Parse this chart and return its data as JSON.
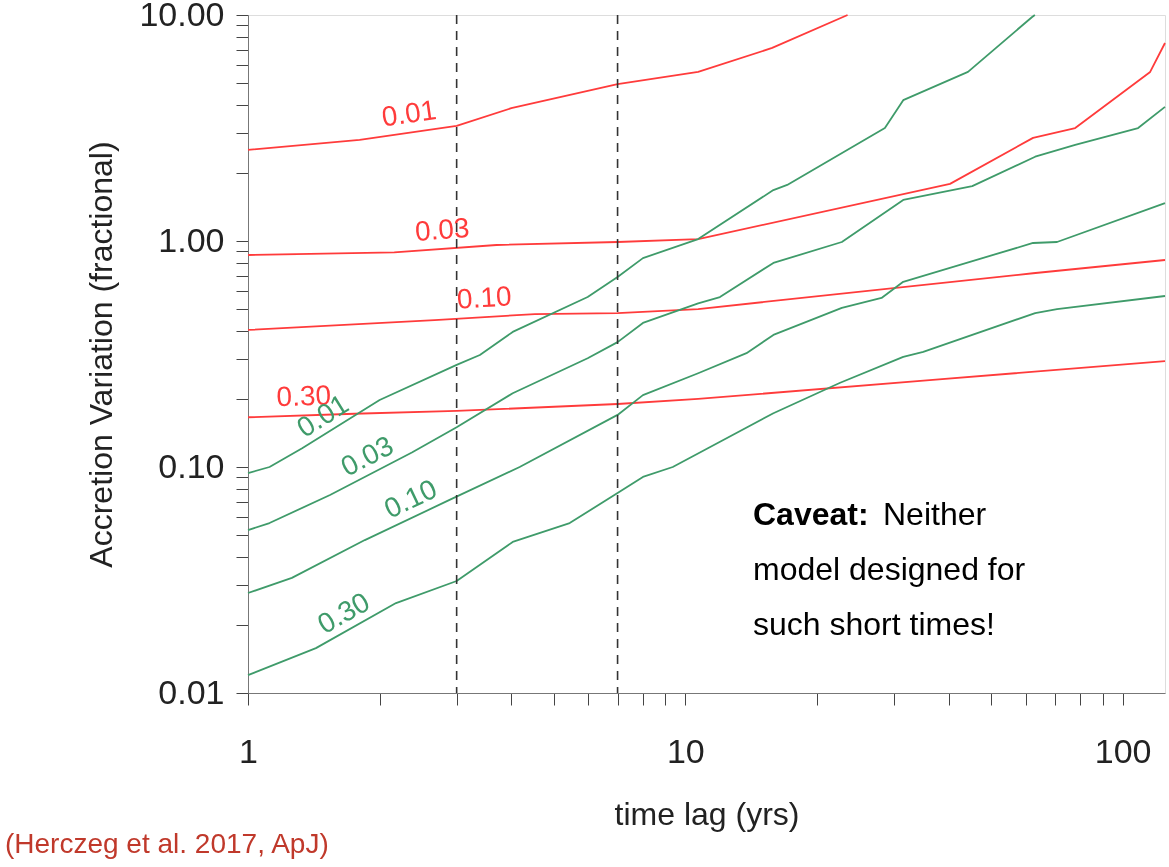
{
  "chart_data": {
    "type": "line",
    "xlabel": "time lag (yrs)",
    "ylabel": "Accretion Variation (fractional)",
    "log": "xy",
    "grid": false,
    "marker": "none",
    "line_style": "solid",
    "xlim": [
      1,
      125
    ],
    "ylim": [
      0.01,
      10
    ],
    "xticks": [
      1,
      {
        "value": 2,
        "label": null
      },
      {
        "value": 3,
        "label": null
      },
      {
        "value": 4,
        "label": null
      },
      {
        "value": 5,
        "label": null
      },
      {
        "value": 6,
        "label": null
      },
      {
        "value": 7,
        "label": null
      },
      {
        "value": 8,
        "label": null
      },
      {
        "value": 9,
        "label": null
      },
      10,
      {
        "value": 20,
        "label": null
      },
      {
        "value": 30,
        "label": null
      },
      {
        "value": 40,
        "label": null
      },
      {
        "value": 50,
        "label": null
      },
      {
        "value": 60,
        "label": null
      },
      {
        "value": 70,
        "label": null
      },
      {
        "value": 80,
        "label": null
      },
      {
        "value": 90,
        "label": null
      },
      100
    ],
    "yticks": [
      0.01,
      {
        "value": 0.02,
        "label": null
      },
      {
        "value": 0.03,
        "label": null
      },
      {
        "value": 0.04,
        "label": null
      },
      {
        "value": 0.05,
        "label": null
      },
      {
        "value": 0.06,
        "label": null
      },
      {
        "value": 0.07,
        "label": null
      },
      {
        "value": 0.08,
        "label": null
      },
      {
        "value": 0.09,
        "label": null
      },
      {
        "value": 0.1,
        "label": "0.10"
      },
      {
        "value": 0.2,
        "label": null
      },
      {
        "value": 0.3,
        "label": null
      },
      {
        "value": 0.4,
        "label": null
      },
      {
        "value": 0.5,
        "label": null
      },
      {
        "value": 0.6,
        "label": null
      },
      {
        "value": 0.7,
        "label": null
      },
      {
        "value": 0.8,
        "label": null
      },
      {
        "value": 0.9,
        "label": null
      },
      {
        "value": 1,
        "label": "1.00"
      },
      {
        "value": 2,
        "label": null
      },
      {
        "value": 3,
        "label": null
      },
      {
        "value": 4,
        "label": null
      },
      {
        "value": 5,
        "label": null
      },
      {
        "value": 6,
        "label": null
      },
      {
        "value": 7,
        "label": null
      },
      {
        "value": 8,
        "label": null
      },
      {
        "value": 9,
        "label": null
      },
      {
        "value": 10,
        "label": "10.00"
      }
    ],
    "series": [
      {
        "name": "0.01",
        "color": "#ff3b3b",
        "x": [
          1,
          1.8,
          2.4,
          3,
          4,
          7,
          10.7,
          15.8,
          23.5
        ],
        "values": [
          2.53,
          2.8,
          null,
          3.23,
          3.87,
          4.95,
          5.6,
          7.15,
          10
        ]
      },
      {
        "name": "0.03",
        "color": "#ff3b3b",
        "x": [
          1,
          2.16,
          2.82,
          3.7,
          7,
          10.7,
          40.3,
          62.4,
          77.9,
          115.6,
          125
        ],
        "values": [
          0.867,
          0.89,
          null,
          0.96,
          0.99,
          1.02,
          1.79,
          2.86,
          3.16,
          5.6,
          7.52
        ]
      },
      {
        "name": "0.10",
        "color": "#ff3b3b",
        "x": [
          1,
          2.67,
          3.51,
          4.53,
          7,
          10.7,
          62.4,
          125
        ],
        "values": [
          0.404,
          0.447,
          null,
          0.475,
          0.48,
          0.5,
          0.72,
          0.824
        ]
      },
      {
        "name": "0.30",
        "color": "#ff3b3b",
        "x": [
          1,
          1.35,
          1.75,
          3,
          7,
          10.7,
          36.8,
          125
        ],
        "values": [
          0.166,
          null,
          0.172,
          0.177,
          0.19,
          0.2,
          0.243,
          0.294
        ]
      },
      {
        "name": "0.01",
        "color": "#3f9b6a",
        "x": [
          1,
          1.12,
          1.33,
          1.62,
          2.0,
          3,
          3.39,
          4.03,
          5.98,
          7,
          8.0,
          10.7,
          15.9,
          17.1,
          28.6,
          31.5,
          44.3,
          62.1,
          63
        ],
        "values": [
          0.094,
          0.1,
          0.121,
          null,
          0.198,
          0.283,
          0.313,
          0.396,
          0.565,
          0.693,
          0.84,
          1.02,
          1.68,
          1.77,
          3.16,
          4.2,
          5.6,
          9.8,
          10
        ]
      },
      {
        "name": "0.03",
        "color": "#3f9b6a",
        "x": [
          1,
          1.12,
          1.54,
          2.03,
          2.37,
          3,
          4.03,
          5.98,
          7,
          8.0,
          10.7,
          12,
          15.9,
          22.8,
          31.5,
          45.3,
          63.1,
          77.9,
          108.5,
          125
        ],
        "values": [
          0.0526,
          0.0565,
          0.0752,
          null,
          0.116,
          0.15,
          0.212,
          0.303,
          0.357,
          0.434,
          0.53,
          0.565,
          0.8,
          0.99,
          1.52,
          1.75,
          2.36,
          2.66,
          3.16,
          3.92
        ]
      },
      {
        "name": "0.10",
        "color": "#3f9b6a",
        "x": [
          1,
          1.26,
          1.85,
          2.54,
          2.89,
          4.18,
          7,
          8.0,
          10.7,
          13.8,
          15.9,
          22.8,
          28.1,
          31.5,
          62.4,
          70.8,
          125
        ],
        "values": [
          0.0277,
          0.0323,
          0.0475,
          null,
          0.0715,
          0.1,
          0.17,
          0.208,
          0.26,
          0.319,
          0.384,
          0.506,
          0.56,
          0.66,
          0.98,
          0.99,
          1.47
        ]
      },
      {
        "name": "0.30",
        "color": "#3f9b6a",
        "x": [
          1,
          1.43,
          1.8,
          2.18,
          3,
          4.03,
          5.44,
          7,
          8.0,
          9.36,
          11.4,
          15.9,
          22.6,
          31.5,
          35,
          63.1,
          70.8,
          125
        ],
        "values": [
          0.012,
          0.0158,
          null,
          0.025,
          0.0313,
          0.0466,
          0.0565,
          0.0767,
          0.0904,
          0.1,
          0.1226,
          0.173,
          0.236,
          0.307,
          0.323,
          0.48,
          0.5,
          0.571
        ]
      }
    ],
    "ref_lines": [
      {
        "axis": "x",
        "value": 3,
        "color": "#333333",
        "line_style": "dashed"
      },
      {
        "axis": "x",
        "value": 7,
        "color": "#333333",
        "line_style": "dashed"
      }
    ],
    "annotations": [
      "Caveat:",
      "Neither model designed for such short times!",
      "(Herczeg et al. 2017, ApJ)"
    ]
  }
}
